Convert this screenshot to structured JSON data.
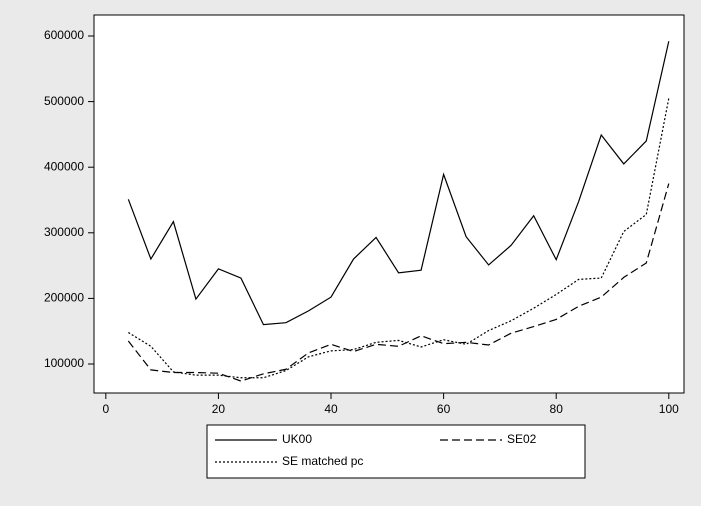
{
  "chart_data": {
    "type": "line",
    "x": [
      4,
      8,
      12,
      16,
      20,
      24,
      28,
      32,
      36,
      40,
      44,
      48,
      52,
      56,
      60,
      64,
      68,
      72,
      76,
      80,
      84,
      88,
      92,
      96,
      100
    ],
    "series": [
      {
        "name": "UK00",
        "color": "#000000",
        "dash": "solid",
        "values": [
          351000,
          260000,
          317000,
          199000,
          245000,
          231000,
          160000,
          163000,
          181000,
          202000,
          260000,
          293000,
          239000,
          243000,
          389000,
          294000,
          251000,
          281000,
          326000,
          259000,
          348000,
          449000,
          405000,
          440000,
          592000
        ]
      },
      {
        "name": "SE02",
        "color": "#000000",
        "dash": "dashed",
        "values": [
          135000,
          91000,
          87000,
          87000,
          86000,
          74000,
          85000,
          92000,
          117000,
          130000,
          119000,
          130000,
          127000,
          143000,
          131000,
          133000,
          129000,
          147000,
          157000,
          168000,
          188000,
          202000,
          232000,
          254000,
          375000
        ]
      },
      {
        "name": "SE matched pc",
        "color": "#000000",
        "dash": "dotted",
        "values": [
          148000,
          127000,
          88000,
          83000,
          83000,
          79000,
          79000,
          90000,
          111000,
          120000,
          122000,
          133000,
          136000,
          126000,
          137000,
          130000,
          151000,
          166000,
          185000,
          206000,
          229000,
          231000,
          302000,
          328000,
          505000
        ]
      }
    ],
    "xlim": [
      -2.1,
      102.7
    ],
    "xticks": [
      0,
      20,
      40,
      60,
      80,
      100
    ],
    "ylim": [
      55800,
      632000
    ],
    "yticks": [
      100000,
      200000,
      300000,
      400000,
      500000,
      600000
    ],
    "grid": false,
    "legend": "bottom"
  }
}
